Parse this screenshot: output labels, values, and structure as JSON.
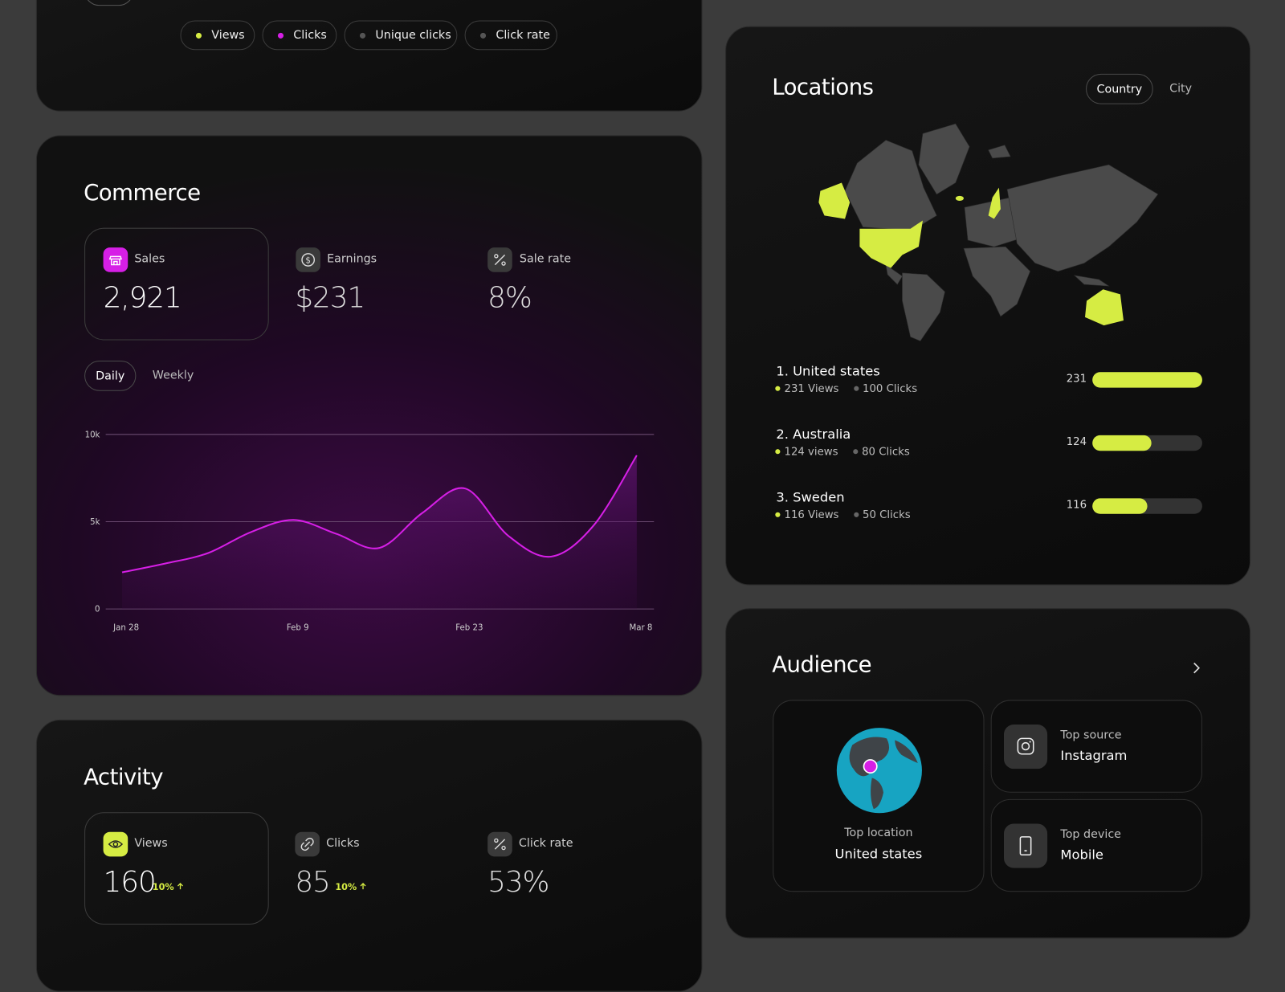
{
  "top_card": {
    "legend": [
      "Views",
      "Clicks",
      "Unique clicks",
      "Click rate"
    ]
  },
  "commerce": {
    "title": "Commerce",
    "stats": [
      {
        "label": "Sales",
        "value": "2,921"
      },
      {
        "label": "Earnings",
        "value": "$231"
      },
      {
        "label": "Sale rate",
        "value": "8%"
      }
    ],
    "tabs": [
      "Daily",
      "Weekly"
    ]
  },
  "chart_data": {
    "type": "line",
    "categories": [
      "Jan 28",
      null,
      null,
      null,
      "Feb 9",
      null,
      null,
      null,
      "Feb 23",
      null,
      null,
      null,
      "Mar 8"
    ],
    "series": [
      {
        "color": "#d61fe6",
        "values": [
          2100,
          2600,
          3200,
          4400,
          5100,
          4300,
          3500,
          5500,
          6900,
          4200,
          3000,
          4800,
          8800
        ]
      }
    ],
    "ylim": [
      0,
      10000
    ],
    "yticks": [
      0,
      {
        "value": 5000,
        "label": "5k"
      },
      {
        "value": 10000,
        "label": "10k"
      }
    ],
    "grid": true
  },
  "activity": {
    "title": "Activity",
    "stats": [
      {
        "label": "Views",
        "value": "160",
        "change": "10%"
      },
      {
        "label": "Clicks",
        "value": "85",
        "change": "10%"
      },
      {
        "label": "Click rate",
        "value": "53%"
      }
    ]
  },
  "locations": {
    "title": "Locations",
    "tabs": [
      "Country",
      "City"
    ],
    "items": [
      {
        "name": "1. United states",
        "views": "231 Views",
        "clicks": "100 Clicks",
        "value": 231
      },
      {
        "name": "2. Australia",
        "views": "124 views",
        "clicks": "80 Clicks",
        "value": 124
      },
      {
        "name": "3. Sweden",
        "views": "116 Views",
        "clicks": "50 Clicks",
        "value": 116
      }
    ]
  },
  "audience": {
    "title": "Audience",
    "cards": [
      {
        "label": "Top location",
        "value": "United states"
      },
      {
        "label": "Top source",
        "value": "Instagram"
      },
      {
        "label": "Top device",
        "value": "Mobile"
      }
    ]
  }
}
